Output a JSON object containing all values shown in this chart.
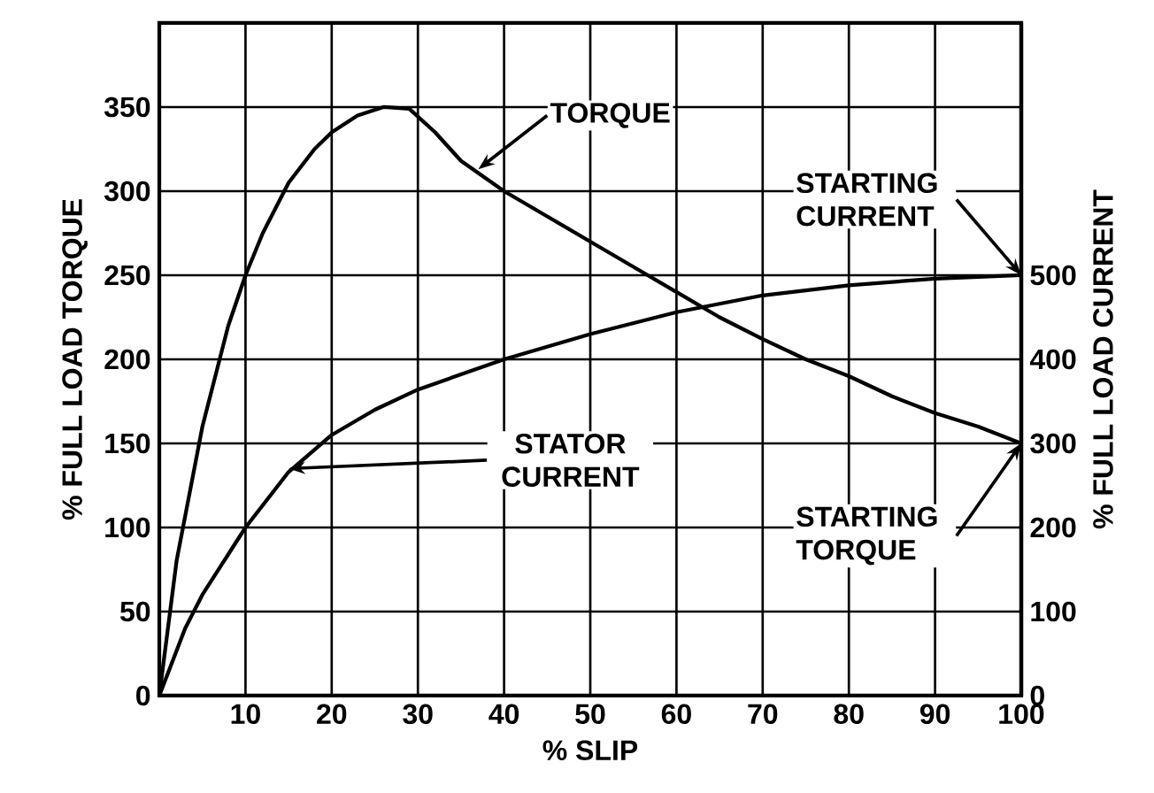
{
  "chart_data": {
    "type": "line",
    "xlabel": "% SLIP",
    "ylabel": "% FULL LOAD TORQUE",
    "y2label": "% FULL LOAD CURRENT",
    "xlim": [
      0,
      100
    ],
    "xticks": [
      10,
      20,
      30,
      40,
      50,
      60,
      70,
      80,
      90,
      100
    ],
    "ylim": [
      0,
      400
    ],
    "yticks": [
      0,
      50,
      100,
      150,
      200,
      250,
      300,
      350
    ],
    "y2lim": [
      0,
      800
    ],
    "y2ticks": [
      0,
      100,
      200,
      300,
      400,
      500
    ],
    "grid": true,
    "series": [
      {
        "name": "TORQUE",
        "color": "#000000",
        "x": [
          0,
          2,
          5,
          8,
          10,
          12,
          15,
          18,
          20,
          23,
          26,
          29,
          32,
          35,
          40,
          45,
          50,
          55,
          60,
          65,
          70,
          75,
          80,
          85,
          90,
          95,
          100
        ],
        "values": [
          0,
          80,
          160,
          220,
          250,
          275,
          305,
          325,
          335,
          345,
          350,
          349,
          335,
          318,
          300,
          285,
          270,
          255,
          240,
          225,
          212,
          200,
          190,
          178,
          168,
          160,
          150
        ]
      },
      {
        "name": "STATOR CURRENT",
        "color": "#000000",
        "axis": "y2",
        "x": [
          0,
          3,
          5,
          10,
          15,
          20,
          25,
          30,
          40,
          50,
          60,
          70,
          80,
          90,
          100
        ],
        "values": [
          0,
          80,
          120,
          200,
          266,
          310,
          340,
          364,
          400,
          430,
          456,
          476,
          488,
          496,
          500
        ]
      }
    ],
    "annotations": [
      {
        "text": "STARTING CURRENT",
        "x": 100,
        "y": 250
      },
      {
        "text": "STARTING TORQUE",
        "x": 100,
        "y": 150
      }
    ]
  }
}
